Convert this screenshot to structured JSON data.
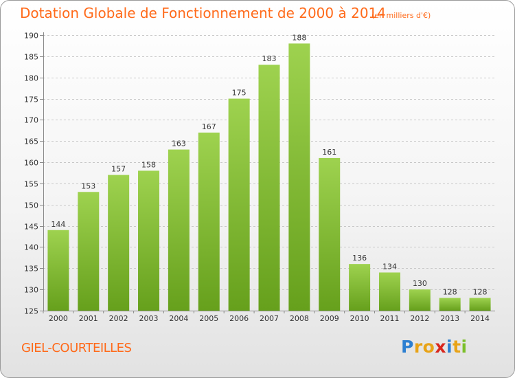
{
  "header": {
    "title": "Dotation Globale de Fonctionnement de 2000 à 2014",
    "subtitle": "(en milliers d'€)"
  },
  "footer": {
    "commune": "GIEL-COURTEILLES",
    "logo_text": "Proxiti",
    "logo_colors": [
      "#2c7fd1",
      "#e8a317",
      "#e8a317",
      "#d8261c",
      "#2c7fd1",
      "#e8a317",
      "#7bbf2a"
    ]
  },
  "colors": {
    "title": "#ff6a1a",
    "bar_light": "#9ed24f",
    "bar_dark": "#66a01c",
    "axis": "#8a8a8a",
    "grid": "#c8c8c8",
    "tick_text": "#333333"
  },
  "chart_data": {
    "type": "bar",
    "categories": [
      "2000",
      "2001",
      "2002",
      "2003",
      "2004",
      "2005",
      "2006",
      "2007",
      "2008",
      "2009",
      "2010",
      "2011",
      "2012",
      "2013",
      "2014"
    ],
    "values": [
      144,
      153,
      157,
      158,
      163,
      167,
      175,
      183,
      188,
      161,
      136,
      134,
      130,
      128,
      128
    ],
    "title": "Dotation Globale de Fonctionnement de 2000 à 2014",
    "subtitle": "(en milliers d'€)",
    "ylim": [
      125,
      190
    ],
    "yticks": [
      125,
      130,
      135,
      140,
      145,
      150,
      155,
      160,
      165,
      170,
      175,
      180,
      185,
      190
    ],
    "grid": "horizontal dashed",
    "data_labels": true
  }
}
